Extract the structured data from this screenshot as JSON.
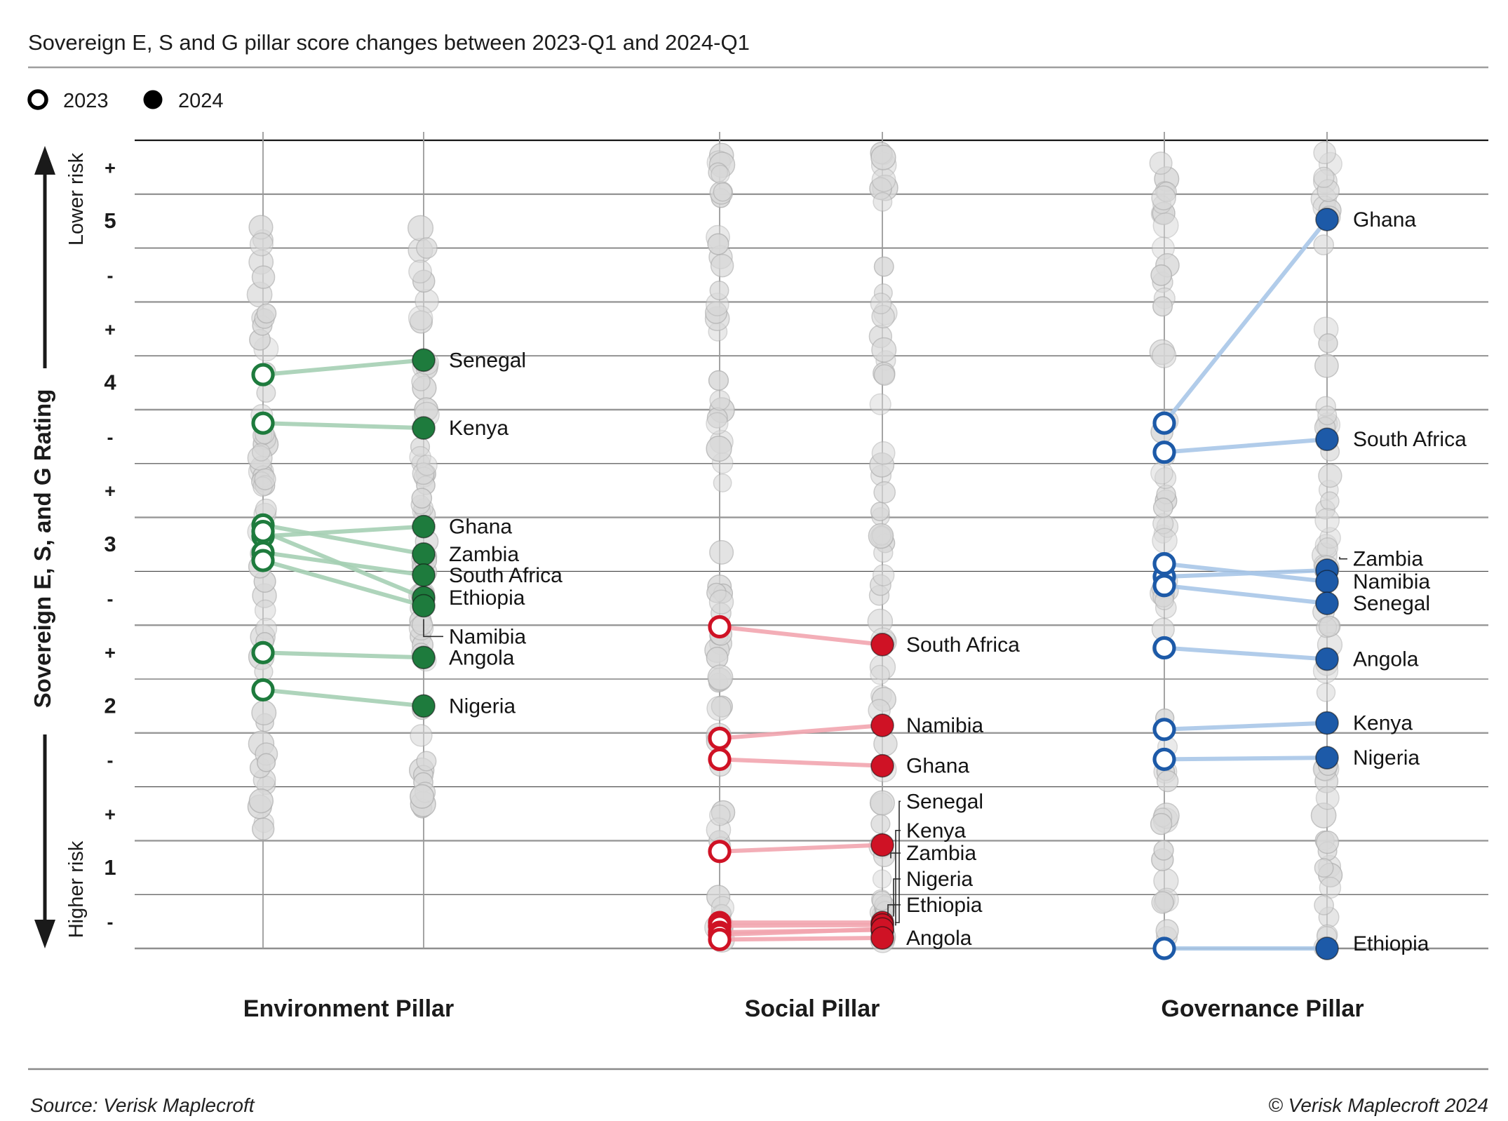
{
  "title": "Sovereign E, S and G pillar score changes between 2023-Q1 and 2024-Q1",
  "legend": {
    "items": [
      {
        "label": "2023",
        "style": "open"
      },
      {
        "label": "2024",
        "style": "filled"
      }
    ]
  },
  "y_axis": {
    "title": "Sovereign E, S, and G Rating",
    "arrow_top_label": "Lower risk",
    "arrow_bottom_label": "Higher risk",
    "tick_labels": [
      "+",
      "5",
      "-",
      "+",
      "4",
      "-",
      "+",
      "3",
      "-",
      "+",
      "2",
      "-",
      "+",
      "1",
      "-"
    ],
    "range": [
      0.5,
      5.5
    ]
  },
  "footer": {
    "source": "Source: Verisk Maplecroft",
    "copyright": "© Verisk Maplecroft 2024"
  },
  "chart_data": {
    "type": "slope-dumbbell",
    "years": [
      "2023",
      "2024"
    ],
    "value_scale": "Sovereign rating bands from 1- (higher risk) to 5+ (lower risk)",
    "colors": {
      "environment": "#1e7b3d",
      "social": "#cf1225",
      "governance": "#1d5aa8"
    },
    "pillars": [
      {
        "name": "Environment Pillar",
        "color": "#1e7b3d",
        "line_color": "#a6d0b4",
        "countries": [
          {
            "name": "Senegal",
            "2023": 4.05,
            "2024": 4.14
          },
          {
            "name": "Kenya",
            "2023": 3.75,
            "2024": 3.72
          },
          {
            "name": "Ghana",
            "2023": 3.05,
            "2024": 3.11
          },
          {
            "name": "Zambia",
            "2023": 3.12,
            "2024": 2.94
          },
          {
            "name": "South Africa",
            "2023": 2.95,
            "2024": 2.81
          },
          {
            "name": "Ethiopia",
            "2023": 3.08,
            "2024": 2.67
          },
          {
            "name": "Namibia",
            "2023": 2.9,
            "2024": 2.62,
            "label_v": 2.43
          },
          {
            "name": "Angola",
            "2023": 2.33,
            "2024": 2.3
          },
          {
            "name": "Nigeria",
            "2023": 2.1,
            "2024": 2.0
          }
        ]
      },
      {
        "name": "Social Pillar",
        "color": "#cf1225",
        "line_color": "#f2a6b0",
        "countries": [
          {
            "name": "South Africa",
            "2023": 2.49,
            "2024": 2.38
          },
          {
            "name": "Namibia",
            "2023": 1.8,
            "2024": 1.88
          },
          {
            "name": "Ghana",
            "2023": 1.67,
            "2024": 1.63
          },
          {
            "name": "Senegal",
            "2023": 0.66,
            "2024": 0.66,
            "label_v": 1.41
          },
          {
            "name": "Kenya",
            "2023": 0.64,
            "2024": 0.645,
            "label_v": 1.23
          },
          {
            "name": "Zambia",
            "2023": 1.1,
            "2024": 1.14,
            "label_v": 1.09
          },
          {
            "name": "Nigeria",
            "2023": 0.6,
            "2024": 0.615,
            "label_v": 0.93
          },
          {
            "name": "Ethiopia",
            "2023": 0.585,
            "2024": 0.62,
            "label_v": 0.77
          },
          {
            "name": "Angola",
            "2023": 0.555,
            "2024": 0.565
          }
        ]
      },
      {
        "name": "Governance Pillar",
        "color": "#1d5aa8",
        "line_color": "#a9c7e8",
        "countries": [
          {
            "name": "Ghana",
            "2023": 3.75,
            "2024": 5.01
          },
          {
            "name": "South Africa",
            "2023": 3.57,
            "2024": 3.65
          },
          {
            "name": "Zambia",
            "2023": 2.8,
            "2024": 2.84,
            "label_v": 2.91
          },
          {
            "name": "Namibia",
            "2023": 2.88,
            "2024": 2.77
          },
          {
            "name": "Senegal",
            "2023": 2.745,
            "2024": 2.635
          },
          {
            "name": "Angola",
            "2023": 2.36,
            "2024": 2.29
          },
          {
            "name": "Kenya",
            "2023": 1.855,
            "2024": 1.895
          },
          {
            "name": "Nigeria",
            "2023": 1.67,
            "2024": 1.68
          },
          {
            "name": "Ethiopia",
            "2023": 0.5,
            "2024": 0.5,
            "label_v": 0.53
          }
        ]
      }
    ]
  }
}
